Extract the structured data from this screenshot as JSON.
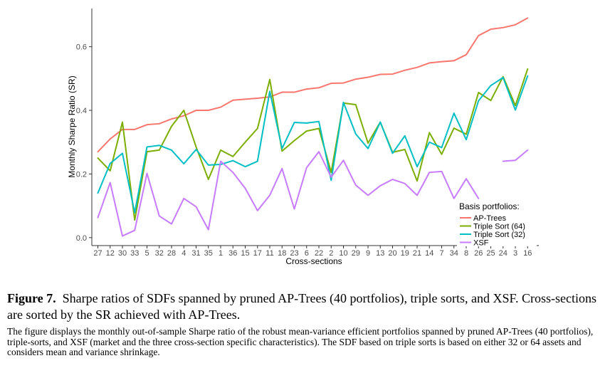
{
  "chart_data": {
    "type": "line",
    "xlabel": "Cross-sections",
    "ylabel": "Monthly Sharpe Ratio (SR)",
    "ylim": [
      -0.025,
      0.72
    ],
    "yticks": [
      0.0,
      0.2,
      0.4,
      0.6
    ],
    "ytick_labels": [
      "0.0",
      "0.2",
      "0.4",
      "0.6"
    ],
    "grid": false,
    "legend_position": "bottom-right",
    "legend_title": "Basis portfolios:",
    "categories": [
      "27",
      "12",
      "30",
      "33",
      "5",
      "32",
      "28",
      "4",
      "31",
      "35",
      "1",
      "36",
      "15",
      "17",
      "11",
      "18",
      "23",
      "6",
      "22",
      "2",
      "10",
      "29",
      "9",
      "13",
      "20",
      "19",
      "21",
      "14",
      "7",
      "34",
      "8",
      "26",
      "25",
      "24",
      "3",
      "16"
    ],
    "series": [
      {
        "name": "AP-Trees",
        "color": "#f8766d",
        "values": [
          0.27,
          0.31,
          0.34,
          0.34,
          0.355,
          0.358,
          0.373,
          0.383,
          0.4,
          0.4,
          0.41,
          0.432,
          0.435,
          0.438,
          0.442,
          0.457,
          0.457,
          0.467,
          0.471,
          0.485,
          0.486,
          0.498,
          0.504,
          0.513,
          0.514,
          0.526,
          0.535,
          0.549,
          0.553,
          0.556,
          0.575,
          0.635,
          0.655,
          0.66,
          0.669,
          0.69
        ]
      },
      {
        "name": "Triple Sort (64)",
        "color": "#7cae00",
        "values": [
          0.25,
          0.21,
          0.363,
          0.055,
          0.27,
          0.275,
          0.35,
          0.4,
          0.285,
          0.183,
          0.275,
          0.255,
          0.3,
          0.343,
          0.497,
          0.272,
          0.305,
          0.335,
          0.343,
          0.205,
          0.423,
          0.418,
          0.297,
          0.363,
          0.268,
          0.277,
          0.178,
          0.33,
          0.262,
          0.344,
          0.325,
          0.456,
          0.431,
          0.506,
          0.415,
          0.53
        ]
      },
      {
        "name": "Triple Sort (32)",
        "color": "#00bfc4",
        "values": [
          0.14,
          0.233,
          0.265,
          0.078,
          0.285,
          0.29,
          0.275,
          0.232,
          0.277,
          0.228,
          0.23,
          0.242,
          0.223,
          0.24,
          0.46,
          0.28,
          0.362,
          0.36,
          0.365,
          0.18,
          0.425,
          0.326,
          0.28,
          0.363,
          0.265,
          0.32,
          0.223,
          0.3,
          0.283,
          0.391,
          0.308,
          0.43,
          0.478,
          0.503,
          0.401,
          0.508
        ]
      },
      {
        "name": "XSF",
        "color": "#c77cff",
        "values": [
          0.063,
          0.173,
          0.005,
          0.023,
          0.202,
          0.068,
          0.043,
          0.123,
          0.097,
          0.025,
          0.24,
          0.205,
          0.155,
          0.085,
          0.133,
          0.217,
          0.09,
          0.22,
          0.27,
          0.19,
          0.243,
          0.165,
          0.133,
          0.163,
          0.183,
          0.17,
          0.133,
          0.205,
          0.208,
          0.123,
          0.185,
          0.123,
          null,
          0.24,
          0.243,
          0.275
        ]
      }
    ]
  },
  "caption": {
    "label": "Figure 7.",
    "title": "Sharpe ratios of SDFs spanned by pruned AP-Trees (40 portfolios), triple sorts, and XSF. Cross-sections are sorted by the SR achieved with AP-Trees.",
    "description": "The figure displays the monthly out-of-sample Sharpe ratio of the robust mean-variance efficient portfolios spanned by pruned AP-Trees (40 portfolios), triple-sorts, and XSF (market and the three cross-section specific characteristics). The SDF based on triple sorts is based on either 32 or 64 assets and considers mean and variance shrinkage."
  }
}
